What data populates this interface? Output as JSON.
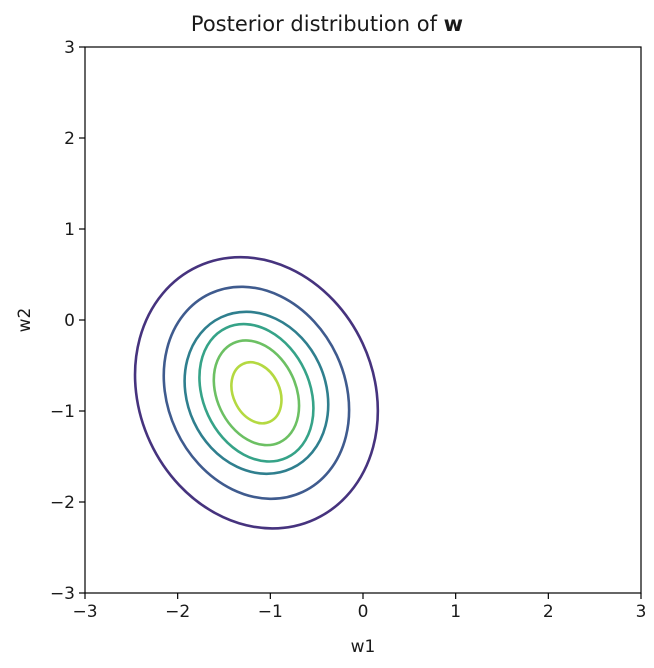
{
  "chart_data": {
    "type": "contour",
    "title": "Posterior distribution of ",
    "title_bold": "w",
    "xlabel": "w1",
    "ylabel": "w2",
    "xlim": [
      -3,
      3
    ],
    "ylim": [
      -3,
      3
    ],
    "xticks": [
      -3,
      -2,
      -1,
      0,
      1,
      2,
      3
    ],
    "yticks": [
      -3,
      -2,
      -1,
      0,
      1,
      2,
      3
    ],
    "xtick_labels": [
      "−3",
      "−2",
      "−1",
      "0",
      "1",
      "2",
      "3"
    ],
    "ytick_labels": [
      "−3",
      "−2",
      "−1",
      "0",
      "1",
      "2",
      "3"
    ],
    "grid": false,
    "center": {
      "w1": -1.15,
      "w2": -0.8
    },
    "contour_levels": [
      {
        "level": 1,
        "color": "#46337e",
        "ext_w1": [
          -2.52,
          0.1
        ],
        "ext_w2": [
          -2.38,
          0.6
        ]
      },
      {
        "level": 2,
        "color": "#3f5b8e",
        "ext_w1": [
          -2.2,
          -0.2
        ],
        "ext_w2": [
          -1.98,
          0.35
        ]
      },
      {
        "level": 3,
        "color": "#2f7f8e",
        "ext_w1": [
          -1.95,
          -0.4
        ],
        "ext_w2": [
          -1.78,
          0.0
        ]
      },
      {
        "level": 4,
        "color": "#36a388",
        "ext_w1": [
          -1.75,
          -0.52
        ],
        "ext_w2": [
          -1.58,
          -0.07
        ]
      },
      {
        "level": 5,
        "color": "#6cc063",
        "ext_w1": [
          -1.6,
          -0.68
        ],
        "ext_w2": [
          -1.35,
          -0.2
        ]
      },
      {
        "level": 6,
        "color": "#b4d941",
        "ext_w1": [
          -1.42,
          -0.88
        ],
        "ext_w2": [
          -1.12,
          -0.45
        ]
      }
    ]
  }
}
